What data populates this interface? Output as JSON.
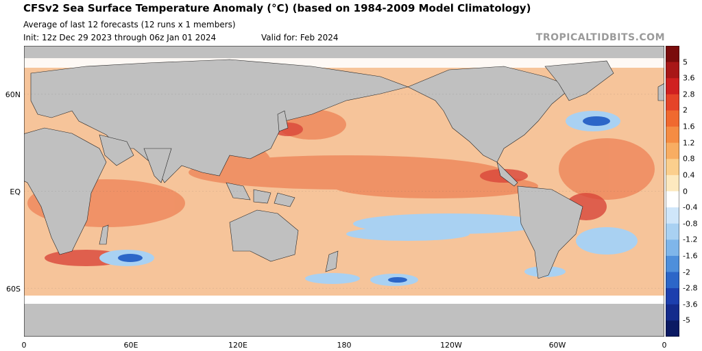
{
  "header": {
    "title": "CFSv2 Sea Surface Temperature Anomaly (°C) (based on 1984-2009 Model Climatology)",
    "subtitle": "Average of last 12 forecasts (12 runs x 1 members)",
    "init": "Init: 12z Dec 29 2023 through 06z Jan 01 2024",
    "valid": "Valid for: Feb 2024",
    "brand": "TROPICALTIDBITS.COM"
  },
  "map": {
    "lat_labels": [
      {
        "label": "60N",
        "lat": 60
      },
      {
        "label": "EQ",
        "lat": 0
      },
      {
        "label": "60S",
        "lat": -60
      }
    ],
    "lon_labels": [
      {
        "label": "0",
        "lon": 0
      },
      {
        "label": "60E",
        "lon": 60
      },
      {
        "label": "120E",
        "lon": 120
      },
      {
        "label": "180",
        "lon": 180
      },
      {
        "label": "120W",
        "lon": 240
      },
      {
        "label": "60W",
        "lon": 300
      },
      {
        "label": "0",
        "lon": 360
      }
    ],
    "colors": {
      "land": "#c0c0c0",
      "ice": "#ffffff",
      "ocean_warm": "#f6c49a",
      "ocean_hot": "#e8704e",
      "ocean_cool": "#a9d1f2"
    }
  },
  "colorbar": {
    "ticks": [
      "5",
      "3.6",
      "2.8",
      "2",
      "1.6",
      "1.2",
      "0.8",
      "0.4",
      "0",
      "-0.4",
      "-0.8",
      "-1.2",
      "-1.6",
      "-2",
      "-2.8",
      "-3.6",
      "-5"
    ],
    "colors": [
      "#7a0c0c",
      "#a81717",
      "#d02020",
      "#e54428",
      "#f0692f",
      "#f58c43",
      "#f8ad62",
      "#fbcf8d",
      "#fde9bf",
      "#ffffff",
      "#cfe6fa",
      "#a9d1f2",
      "#7fb6ea",
      "#4e8fdb",
      "#2c66c8",
      "#1c3fae",
      "#142b8c",
      "#0b1a63"
    ]
  }
}
